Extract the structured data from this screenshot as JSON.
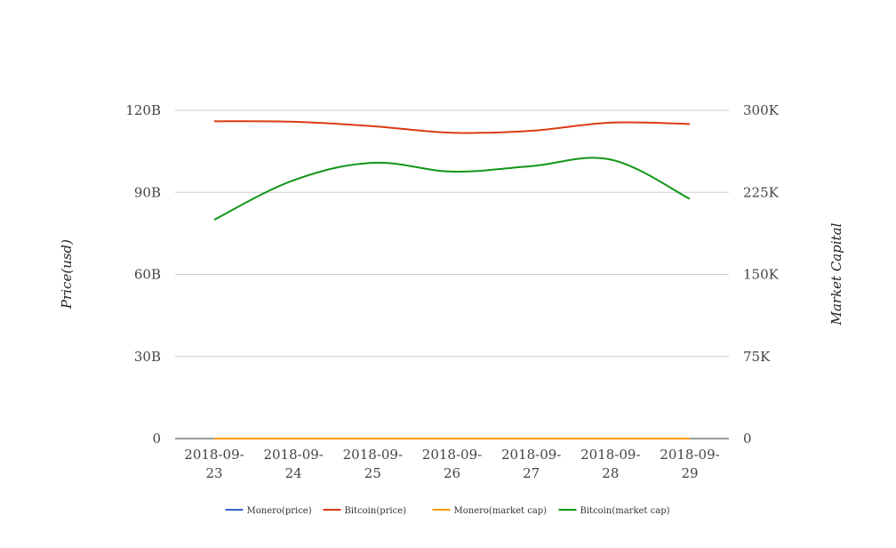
{
  "chart_data": {
    "type": "line",
    "categories": [
      "2018-09-23",
      "2018-09-24",
      "2018-09-25",
      "2018-09-26",
      "2018-09-27",
      "2018-09-28",
      "2018-09-29"
    ],
    "x_tick_labels": [
      [
        "2018-09-",
        "23"
      ],
      [
        "2018-09-",
        "24"
      ],
      [
        "2018-09-",
        "25"
      ],
      [
        "2018-09-",
        "26"
      ],
      [
        "2018-09-",
        "27"
      ],
      [
        "2018-09-",
        "28"
      ],
      [
        "2018-09-",
        "29"
      ]
    ],
    "y_left": {
      "label": "Price(usd)",
      "lim": [
        0,
        120000000000
      ],
      "ticks": [
        0,
        30000000000,
        60000000000,
        90000000000,
        120000000000
      ],
      "tick_labels": [
        "0",
        "30B",
        "60B",
        "90B",
        "120B"
      ]
    },
    "y_right": {
      "label": "Market Capital",
      "lim": [
        0,
        300000
      ],
      "ticks": [
        0,
        75000,
        150000,
        225000,
        300000
      ],
      "tick_labels": [
        "0",
        "75K",
        "150K",
        "225K",
        "300K"
      ]
    },
    "grid": true,
    "legend_position": "bottom",
    "series": [
      {
        "name": "Monero(price)",
        "axis": "left",
        "color": "#3366cc",
        "values": [
          0,
          0,
          0,
          0,
          0,
          0,
          0
        ]
      },
      {
        "name": "Bitcoin(price)",
        "axis": "left",
        "color": "#dc3912",
        "values": [
          116000000000,
          115800000000,
          114200000000,
          111800000000,
          112500000000,
          115500000000,
          115000000000
        ]
      },
      {
        "name": "Monero(market cap)",
        "axis": "right",
        "color": "#ff9900",
        "values": [
          0,
          0,
          0,
          0,
          0,
          0,
          0
        ]
      },
      {
        "name": "Bitcoin(market cap)",
        "axis": "right",
        "color": "#109618",
        "values": [
          200000,
          236000,
          252000,
          244000,
          249000,
          255000,
          219000
        ]
      }
    ]
  }
}
